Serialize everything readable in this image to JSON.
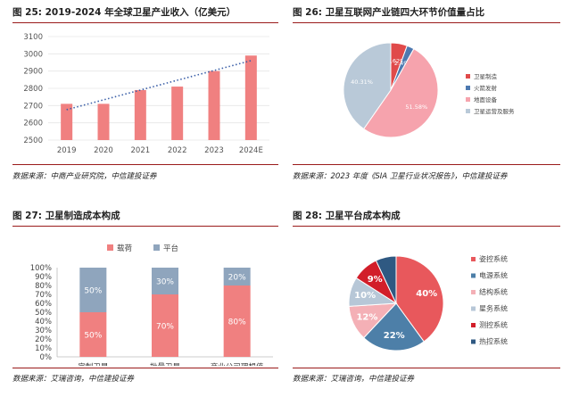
{
  "panels": [
    {
      "title": "图 25: 2019-2024 年全球卫星产业收入（亿美元）",
      "source": "数据来源：中商产业研究院，中信建投证券"
    },
    {
      "title": "图 26:  卫星互联网产业链四大环节价值量占比",
      "source": "数据来源：2023 年度《SIA 卫星行业状况报告》，中信建投证券"
    },
    {
      "title": "图 27:  卫星制造成本构成",
      "source": "数据来源：艾瑞咨询，中信建投证券"
    },
    {
      "title": "图 28:  卫星平台成本构成",
      "source": "数据来源：艾瑞咨询，中信建投证券"
    }
  ],
  "chart_data": [
    {
      "type": "bar",
      "categories": [
        "2019",
        "2020",
        "2021",
        "2022",
        "2023",
        "2024E"
      ],
      "values": [
        2710,
        2710,
        2790,
        2810,
        2900,
        2990
      ],
      "ylim": [
        2500,
        3100
      ],
      "yticks": [
        2500,
        2600,
        2700,
        2800,
        2900,
        3000,
        3100
      ],
      "trendline": "dotted",
      "colors": {
        "bar": "#f08080",
        "trend": "#3b5fa8"
      }
    },
    {
      "type": "pie",
      "labels": [
        "卫星制造",
        "火箭发射",
        "地面设备",
        "卫星运营及服务"
      ],
      "values": [
        5.62,
        2.49,
        51.58,
        40.31
      ],
      "value_labels": [
        "5.62%",
        "2.49%",
        "51.58%",
        "40.31%"
      ],
      "colors": [
        "#e04a4a",
        "#4d79b0",
        "#f6a3ad",
        "#b9c9d8"
      ],
      "legend": "right"
    },
    {
      "type": "bar",
      "stacked": true,
      "percent": true,
      "categories": [
        "定制卫星",
        "批量卫星",
        "商业公司理想值"
      ],
      "series": [
        {
          "name": "载荷",
          "values": [
            50,
            70,
            80
          ],
          "labels": [
            "50%",
            "70%",
            "80%"
          ],
          "color": "#f08080"
        },
        {
          "name": "平台",
          "values": [
            50,
            30,
            20
          ],
          "labels": [
            "50%",
            "30%",
            "20%"
          ],
          "color": "#8fa5bd"
        }
      ],
      "yticks": [
        "0%",
        "10%",
        "20%",
        "30%",
        "40%",
        "50%",
        "60%",
        "70%",
        "80%",
        "90%",
        "100%"
      ],
      "legend": "top"
    },
    {
      "type": "pie",
      "labels": [
        "姿控系统",
        "电源系统",
        "结构系统",
        "星务系统",
        "测控系统",
        "热控系统"
      ],
      "values": [
        40,
        22,
        12,
        10,
        9,
        7
      ],
      "value_labels": [
        "40%",
        "22%",
        "12%",
        "10%",
        "9%",
        ""
      ],
      "colors": [
        "#e8585c",
        "#4d7fa8",
        "#f4b0b6",
        "#b7c7d7",
        "#d21e2a",
        "#2f5982"
      ],
      "legend": "right"
    }
  ]
}
